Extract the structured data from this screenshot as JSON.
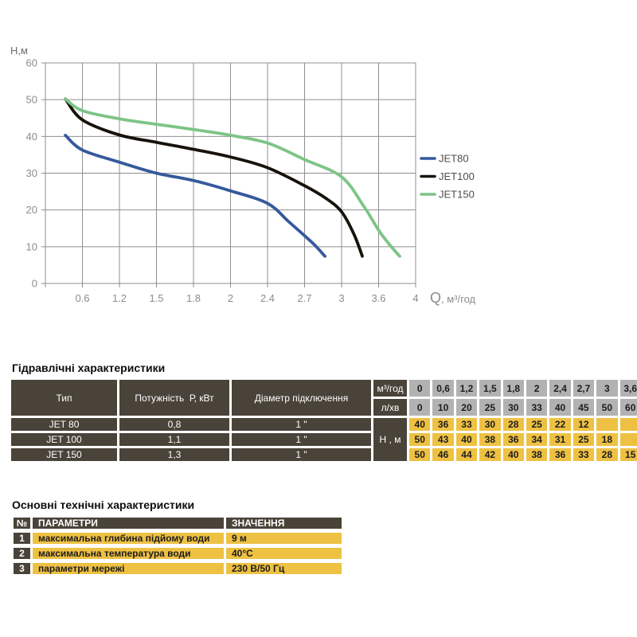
{
  "chart_data": {
    "type": "line",
    "title": "",
    "y_axis_label": "Н,м",
    "x_axis_label_main": "Q",
    "x_axis_label_unit": ", м³/год",
    "ylim": [
      0,
      60
    ],
    "y_ticks": [
      0,
      10,
      20,
      30,
      40,
      50,
      60
    ],
    "x_gridline_labels": [
      "",
      "0.6",
      "1.2",
      "1.5",
      "1.8",
      "2",
      "2.4",
      "2.7",
      "3",
      "3.6",
      "4"
    ],
    "grid": true,
    "legend_position": "right",
    "series": [
      {
        "name": "JET80",
        "color": "#35599c",
        "x": [
          0,
          0.6,
          1.2,
          1.5,
          1.8,
          2,
          2.4,
          2.7
        ],
        "values": [
          40,
          36,
          33,
          30,
          28,
          25,
          22,
          12
        ],
        "curve_points": [
          [
            0.54,
            40.3
          ],
          [
            1,
            36.3
          ],
          [
            2,
            33
          ],
          [
            3,
            30
          ],
          [
            4,
            28
          ],
          [
            5,
            25.2
          ],
          [
            6,
            21.8
          ],
          [
            6.55,
            17
          ],
          [
            7,
            13
          ],
          [
            7.3,
            10.2
          ],
          [
            7.55,
            7.4
          ]
        ]
      },
      {
        "name": "JET100",
        "color": "#17130b",
        "x": [
          0,
          0.6,
          1.2,
          1.5,
          1.8,
          2,
          2.4,
          2.7,
          3
        ],
        "values": [
          50,
          43,
          40,
          38,
          36,
          34,
          31,
          25,
          18
        ],
        "curve_points": [
          [
            0.54,
            50.2
          ],
          [
            1,
            44.5
          ],
          [
            2,
            40.4
          ],
          [
            3,
            38.4
          ],
          [
            4,
            36.5
          ],
          [
            5,
            34.4
          ],
          [
            6,
            31.5
          ],
          [
            7,
            26.6
          ],
          [
            7.6,
            23
          ],
          [
            8,
            19.5
          ],
          [
            8.33,
            13.5
          ],
          [
            8.56,
            7.4
          ]
        ]
      },
      {
        "name": "JET150",
        "color": "#7ec487",
        "x": [
          0,
          0.6,
          1.2,
          1.5,
          1.8,
          2,
          2.4,
          2.7,
          3,
          3.6
        ],
        "values": [
          50,
          46,
          44,
          42,
          40,
          38,
          36,
          33,
          28,
          15
        ],
        "curve_points": [
          [
            0.54,
            50.2
          ],
          [
            1,
            47
          ],
          [
            2,
            44.8
          ],
          [
            3,
            43.3
          ],
          [
            4,
            41.9
          ],
          [
            5,
            40.3
          ],
          [
            6,
            38.2
          ],
          [
            7,
            33.7
          ],
          [
            8,
            29
          ],
          [
            8.6,
            21
          ],
          [
            9,
            14.5
          ],
          [
            9.3,
            10.5
          ],
          [
            9.57,
            7.4
          ]
        ]
      }
    ]
  },
  "hydraulic_table": {
    "title": "Гідравлічні характеристики",
    "col_headers": [
      "Тип",
      "Потужність  Р, кВт",
      "Діаметр підключення"
    ],
    "flow_row_label": "м³/год",
    "flow_row": [
      "0",
      "0,6",
      "1,2",
      "1,5",
      "1,8",
      "2",
      "2,4",
      "2,7",
      "3",
      "3,6"
    ],
    "lmin_row_label": "л/хв",
    "lmin_row": [
      "0",
      "10",
      "20",
      "25",
      "30",
      "33",
      "40",
      "45",
      "50",
      "60"
    ],
    "head_label": "Н , м",
    "rows": [
      {
        "type": "JET 80",
        "power": "0,8",
        "diameter": "1 \"",
        "head": [
          "40",
          "36",
          "33",
          "30",
          "28",
          "25",
          "22",
          "12",
          "",
          ""
        ]
      },
      {
        "type": "JET 100",
        "power": "1,1",
        "diameter": "1 \"",
        "head": [
          "50",
          "43",
          "40",
          "38",
          "36",
          "34",
          "31",
          "25",
          "18",
          ""
        ]
      },
      {
        "type": "JET 150",
        "power": "1,3",
        "diameter": "1 \"",
        "head": [
          "50",
          "46",
          "44",
          "42",
          "40",
          "38",
          "36",
          "33",
          "28",
          "15"
        ]
      }
    ]
  },
  "tech_table": {
    "title": "Основні технічні характеристики",
    "headers": [
      "№",
      "ПАРАМЕТРИ",
      "ЗНАЧЕННЯ"
    ],
    "rows": [
      {
        "num": "1",
        "param": "максимальна глибина підйому води",
        "value": "9 м"
      },
      {
        "num": "2",
        "param": "максимальна температура води",
        "value": "40°С"
      },
      {
        "num": "3",
        "param": "параметри мережі",
        "value": "230 В/50 Гц"
      }
    ]
  },
  "colors": {
    "dark_cell": "#4a4339",
    "gray_cell": "#b2b2b2",
    "yellow_cell": "#eec143",
    "grid_line": "#8f8f8f",
    "axis_text": "#8c8c8c",
    "legend_text": "#4c4c4c"
  }
}
